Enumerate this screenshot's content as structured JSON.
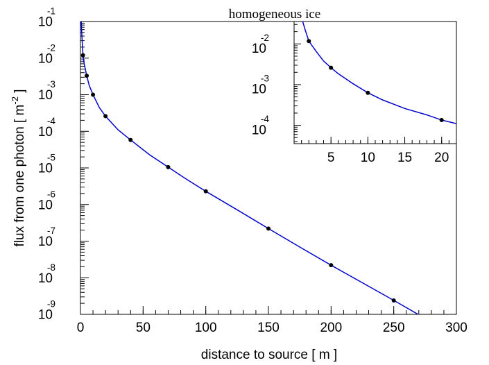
{
  "chart_data": [
    {
      "type": "line",
      "title": "homogeneous ice",
      "xlabel": "distance to source [ m ]",
      "ylabel": "flux from one photon [ m",
      "ylabel_exp": "-2",
      "ylabel_close": " ]",
      "xlim": [
        0,
        300
      ],
      "ylim_log10": [
        -9,
        -1
      ],
      "yscale": "log",
      "grid": false,
      "x_ticks": [
        "0",
        "50",
        "100",
        "150",
        "200",
        "250",
        "300"
      ],
      "y_ticks": [
        {
          "base": "10",
          "exp": "-1"
        },
        {
          "base": "10",
          "exp": "-2"
        },
        {
          "base": "10",
          "exp": "-3"
        },
        {
          "base": "10",
          "exp": "-4"
        },
        {
          "base": "10",
          "exp": "-5"
        },
        {
          "base": "10",
          "exp": "-6"
        },
        {
          "base": "10",
          "exp": "-7"
        },
        {
          "base": "10",
          "exp": "-8"
        },
        {
          "base": "10",
          "exp": "-9"
        }
      ],
      "series": [
        {
          "color": "#0000cc",
          "points": [
            [
              2,
              0.012
            ],
            [
              5,
              0.0033
            ],
            [
              10,
              0.001
            ],
            [
              20,
              0.00026
            ],
            [
              40,
              5.8e-05
            ],
            [
              70,
              1.05e-05
            ],
            [
              100,
              2.3e-06
            ],
            [
              150,
              2.2e-07
            ],
            [
              200,
              2.2e-08
            ],
            [
              250,
              2.4e-09
            ]
          ],
          "curve": [
            [
              0.5,
              0.13
            ],
            [
              1,
              0.05
            ],
            [
              2,
              0.012
            ],
            [
              3,
              0.007
            ],
            [
              5,
              0.0033
            ],
            [
              7,
              0.0018
            ],
            [
              10,
              0.001
            ],
            [
              15,
              0.00045
            ],
            [
              20,
              0.00026
            ],
            [
              30,
              0.00011
            ],
            [
              40,
              5.8e-05
            ],
            [
              55,
              2.3e-05
            ],
            [
              70,
              1.05e-05
            ],
            [
              85,
              4.8e-06
            ],
            [
              100,
              2.3e-06
            ],
            [
              125,
              7.2e-07
            ],
            [
              150,
              2.2e-07
            ],
            [
              175,
              6.9e-08
            ],
            [
              200,
              2.2e-08
            ],
            [
              225,
              7.3e-09
            ],
            [
              250,
              2.4e-09
            ],
            [
              273,
              8.5e-10
            ]
          ]
        }
      ]
    },
    {
      "type": "line",
      "yscale": "log",
      "xlim": [
        0,
        22
      ],
      "ylim_log10": [
        -4.45,
        -1.45
      ],
      "x_ticks": [
        "5",
        "10",
        "15",
        "20"
      ],
      "y_ticks": [
        {
          "base": "10",
          "exp": "-2"
        },
        {
          "base": "10",
          "exp": "-3"
        },
        {
          "base": "10",
          "exp": "-4"
        }
      ],
      "series": [
        {
          "color": "#0000cc",
          "points": [
            [
              2,
              0.0117
            ],
            [
              5,
              0.0026
            ],
            [
              10,
              0.00063
            ],
            [
              20,
              0.000135
            ]
          ],
          "curve": [
            [
              1,
              0.045
            ],
            [
              1.5,
              0.022
            ],
            [
              2,
              0.0117
            ],
            [
              3,
              0.0065
            ],
            [
              4,
              0.0038
            ],
            [
              5,
              0.0026
            ],
            [
              6,
              0.00185
            ],
            [
              8,
              0.00105
            ],
            [
              10,
              0.00063
            ],
            [
              12,
              0.00042
            ],
            [
              15,
              0.00026
            ],
            [
              18,
              0.00018
            ],
            [
              20,
              0.000135
            ],
            [
              22,
              0.00011
            ]
          ]
        }
      ]
    }
  ]
}
